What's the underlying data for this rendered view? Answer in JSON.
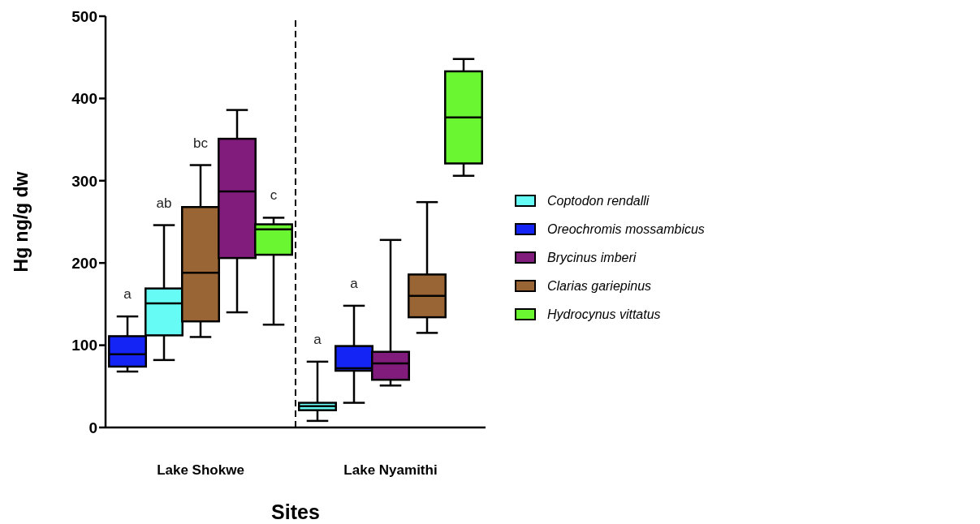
{
  "chart_data": {
    "type": "box",
    "xlabel": "Sites",
    "ylabel": "Hg ng/g dw",
    "categories": [
      "Lake Shokwe",
      "Lake Nyamithi"
    ],
    "ylim": [
      0,
      500
    ],
    "yticks": [
      0,
      100,
      200,
      300,
      400,
      500
    ],
    "grid": false,
    "legend": "right",
    "series": [
      {
        "color": "#1424f5",
        "boxes": [
          {
            "low": 68,
            "q1": 74,
            "median": 89,
            "q3": 111,
            "high": 135
          },
          null
        ],
        "value_labels": [
          "a",
          null
        ]
      },
      {
        "color": "#66fcf5",
        "boxes": [
          {
            "low": 82,
            "q1": 112,
            "median": 151,
            "q3": 169,
            "high": 246
          },
          null
        ],
        "value_labels": [
          "ab",
          null
        ]
      },
      {
        "color": "#9a6534",
        "boxes": [
          {
            "low": 110,
            "q1": 129,
            "median": 188,
            "q3": 268,
            "high": 319
          },
          null
        ],
        "value_labels": [
          "bc",
          null
        ]
      },
      {
        "color": "#821c7c",
        "boxes": [
          {
            "low": 140,
            "q1": 206,
            "median": 287,
            "q3": 351,
            "high": 386
          },
          null
        ]
      },
      {
        "color": "#6af732",
        "boxes": [
          {
            "low": 125,
            "q1": 210,
            "median": 241,
            "q3": 247,
            "high": 255
          },
          null
        ],
        "value_labels": [
          "c",
          null
        ]
      },
      {
        "name": "Coptodon rendalli",
        "color": "#66fcf5",
        "boxes": [
          null,
          {
            "low": 8,
            "q1": 21,
            "median": 26,
            "q3": 30,
            "high": 80
          }
        ],
        "value_labels": [
          null,
          "a"
        ]
      },
      {
        "name": "Oreochromis mossambicus",
        "color": "#1424f5",
        "boxes": [
          null,
          {
            "low": 30,
            "q1": 69,
            "median": 72,
            "q3": 99,
            "high": 148
          }
        ],
        "value_labels": [
          null,
          "a"
        ]
      },
      {
        "name": "Brycinus imberi",
        "color": "#821c7c",
        "boxes": [
          null,
          {
            "low": 51,
            "q1": 58,
            "median": 78,
            "q3": 92,
            "high": 228
          }
        ]
      },
      {
        "name": "Clarias gariepinus",
        "color": "#9a6534",
        "boxes": [
          null,
          {
            "low": 115,
            "q1": 134,
            "median": 160,
            "q3": 186,
            "high": 274
          }
        ]
      },
      {
        "name": "Hydrocynus vittatus",
        "color": "#6af732",
        "boxes": [
          null,
          {
            "low": 306,
            "q1": 321,
            "median": 377,
            "q3": 433,
            "high": 448
          }
        ]
      }
    ]
  }
}
